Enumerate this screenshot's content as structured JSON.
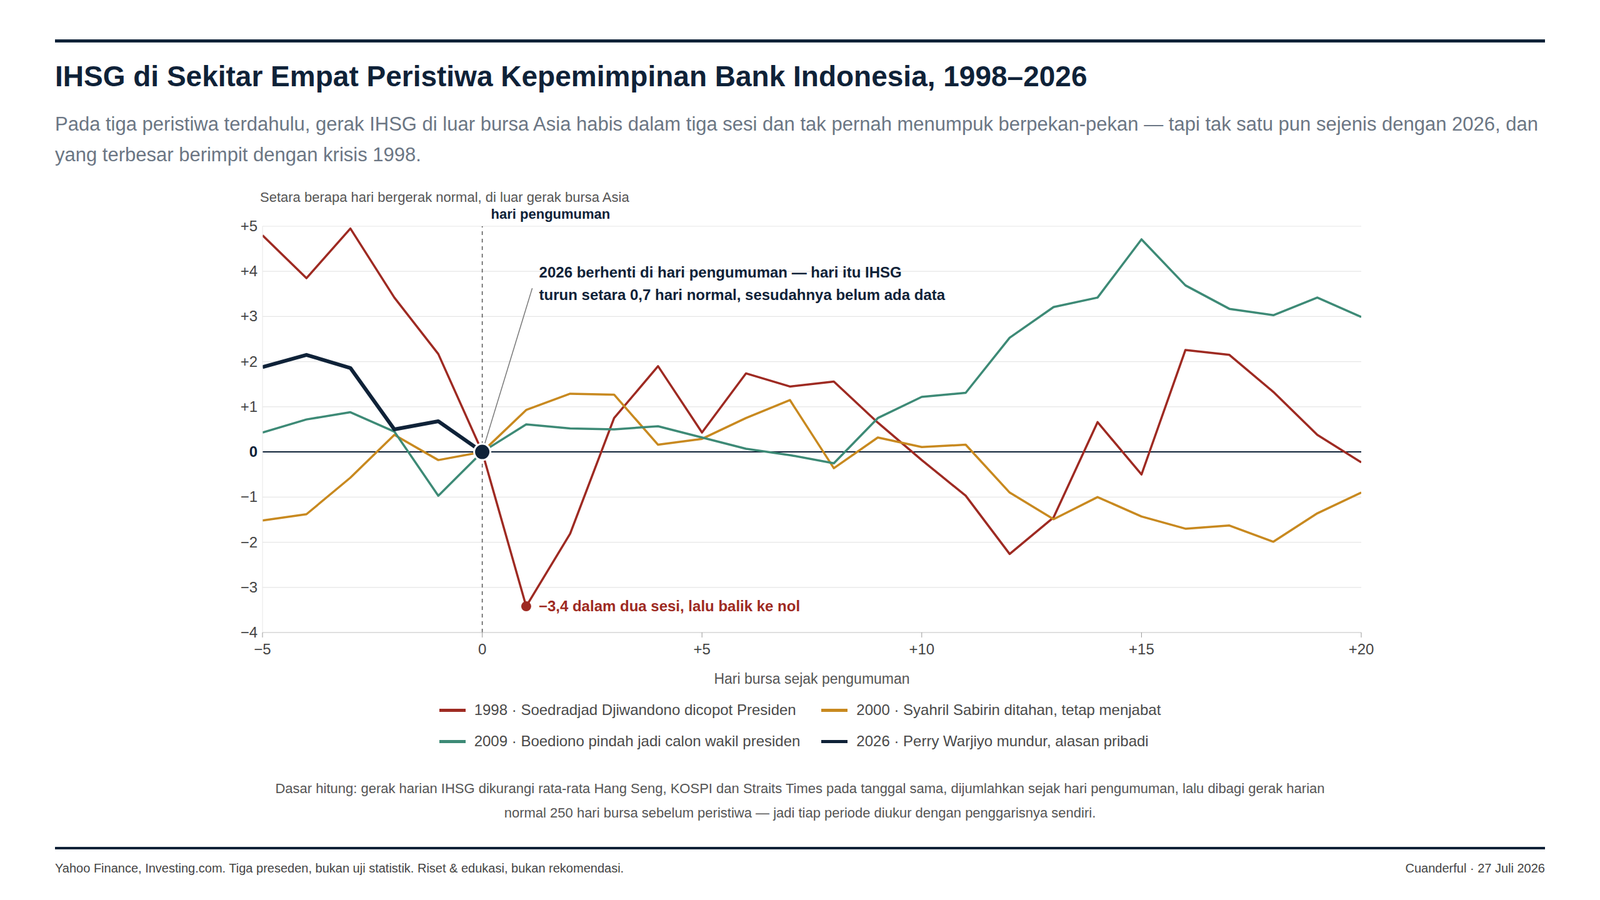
{
  "chart_data": {
    "type": "line",
    "title": "IHSG di Sekitar Empat Peristiwa Kepemimpinan Bank Indonesia, 1998–2026",
    "subtitle": "Pada tiga peristiwa terdahulu, gerak IHSG di luar bursa Asia habis dalam tiga sesi dan tak pernah menumpuk berpekan-pekan — tapi tak satu pun sejenis dengan 2026, dan yang terbesar berimpit dengan krisis 1998.",
    "y_label": "Setara berapa hari bergerak normal, di luar gerak bursa Asia",
    "x_label": "Hari bursa sejak pengumuman",
    "x": [
      -5,
      -4,
      -3,
      -2,
      -1,
      0,
      1,
      2,
      3,
      4,
      5,
      6,
      7,
      8,
      9,
      10,
      11,
      12,
      13,
      14,
      15,
      16,
      17,
      18,
      19,
      20
    ],
    "xlim": [
      -5,
      20
    ],
    "xticks": [
      {
        "value": -5,
        "label": "−5"
      },
      0,
      {
        "value": 5,
        "label": "+5"
      },
      {
        "value": 10,
        "label": "+10"
      },
      {
        "value": 15,
        "label": "+15"
      },
      {
        "value": 20,
        "label": "+20"
      }
    ],
    "ylim": [
      -4,
      5
    ],
    "yticks": [
      {
        "value": -4,
        "label": "−4"
      },
      {
        "value": -3,
        "label": "−3"
      },
      {
        "value": -2,
        "label": "−2"
      },
      {
        "value": -1,
        "label": "−1"
      },
      0,
      {
        "value": 1,
        "label": "+1"
      },
      {
        "value": 2,
        "label": "+2"
      },
      {
        "value": 3,
        "label": "+3"
      },
      {
        "value": 4,
        "label": "+4"
      },
      {
        "value": 5,
        "label": "+5"
      }
    ],
    "grid": true,
    "legend": "bottom",
    "series": [
      {
        "name": "1998 · Soedradjad Djiwandono dicopot Presiden",
        "color": "#9e2a22",
        "values": [
          4.8,
          3.85,
          4.95,
          3.42,
          2.17,
          0,
          -3.42,
          -1.81,
          0.75,
          1.9,
          0.43,
          1.74,
          1.45,
          1.56,
          0.65,
          -0.18,
          -0.97,
          -2.26,
          -1.45,
          0.66,
          -0.5,
          2.26,
          2.15,
          1.33,
          0.38,
          -0.23
        ]
      },
      {
        "name": "2000 · Syahril Sabirin ditahan, tetap menjabat",
        "color": "#c8891f",
        "values": [
          -1.52,
          -1.38,
          -0.57,
          0.38,
          -0.18,
          0,
          0.93,
          1.29,
          1.27,
          0.16,
          0.29,
          0.75,
          1.15,
          -0.36,
          0.32,
          0.11,
          0.16,
          -0.9,
          -1.49,
          -1.0,
          -1.43,
          -1.7,
          -1.63,
          -1.99,
          -1.36,
          -0.9
        ]
      },
      {
        "name": "2009 · Boediono pindah jadi calon wakil presiden",
        "color": "#3d8a76",
        "values": [
          0.43,
          0.72,
          0.88,
          0.45,
          -0.97,
          0,
          0.61,
          0.52,
          0.5,
          0.57,
          0.32,
          0.07,
          -0.07,
          -0.25,
          0.75,
          1.22,
          1.31,
          2.53,
          3.21,
          3.42,
          4.71,
          3.69,
          3.17,
          3.03,
          3.42,
          2.99
        ]
      },
      {
        "name": "2026 · Perry Warjiyo mundur, alasan pribadi",
        "color": "#0f2238",
        "values": [
          1.88,
          2.15,
          1.86,
          0.5,
          0.68,
          0,
          null,
          null,
          null,
          null,
          null,
          null,
          null,
          null,
          null,
          null,
          null,
          null,
          null,
          null,
          null,
          null,
          null,
          null,
          null,
          null
        ]
      }
    ],
    "reference_lines": [
      {
        "x": 0,
        "label": "hari pengumuman",
        "line_style": "dashed"
      },
      {
        "y": 0,
        "line_style": "solid"
      }
    ],
    "annotations": [
      {
        "series": "2026 · Perry Warjiyo mundur, alasan pribadi",
        "x": 0,
        "text": [
          "2026 berhenti di hari pengumuman — hari itu IHSG",
          "turun setara 0,7 hari normal, sesudahnya belum ada data"
        ]
      },
      {
        "series": "1998 · Soedradjad Djiwandono dicopot Presiden",
        "x": 1,
        "text": [
          "−3,4 dalam dua sesi, lalu balik ke nol"
        ]
      }
    ],
    "footnote": "Dasar hitung: gerak harian IHSG dikurangi rata-rata Hang Seng, KOSPI dan Straits Times pada tanggal sama, dijumlahkan sejak hari pengumuman, lalu dibagi gerak harian normal 250 hari bursa sebelum peristiwa — jadi tiap periode diukur dengan penggarisnya sendiri.",
    "source": "Yahoo Finance, Investing.com. Tiga preseden, bukan uji statistik. Riset & edukasi, bukan rekomendasi.",
    "credit": "Cuanderful · 27 Juli 2026"
  }
}
